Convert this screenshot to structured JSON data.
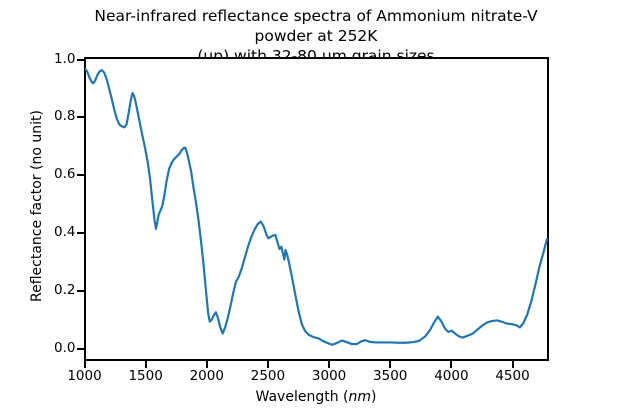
{
  "chart_data": {
    "type": "line",
    "title_line1": "Near-infrared reflectance spectra of Ammonium nitrate-V powder at 252K",
    "title_line2": "(up) with 32-80 μm grain sizes",
    "title": "Near-infrared reflectance spectra of Ammonium nitrate-V powder at 252K (up) with 32-80 μm grain sizes",
    "xlabel": "Wavelength (nm)",
    "xlabel_prefix": "Wavelength (",
    "xlabel_unit_italic": "nm",
    "xlabel_suffix": ")",
    "ylabel": "Reflectance factor (no unit)",
    "xlim": [
      1000,
      4786
    ],
    "ylim": [
      -0.0345,
      1.0069
    ],
    "x_ticks": [
      1000,
      1500,
      2000,
      2500,
      3000,
      3500,
      4000,
      4500
    ],
    "y_ticks": [
      0.0,
      0.2,
      0.4,
      0.6,
      0.8,
      1.0
    ],
    "grid": false,
    "legend_position": "none",
    "line_color": "#1f77b4",
    "axis_color": "#000000",
    "background": "#ffffff",
    "series": [
      {
        "name": "reflectance",
        "points": [
          [
            1000,
            0.97
          ],
          [
            1018,
            0.96
          ],
          [
            1038,
            0.938
          ],
          [
            1056,
            0.924
          ],
          [
            1068,
            0.92
          ],
          [
            1082,
            0.928
          ],
          [
            1100,
            0.947
          ],
          [
            1120,
            0.961
          ],
          [
            1137,
            0.965
          ],
          [
            1158,
            0.956
          ],
          [
            1180,
            0.93
          ],
          [
            1200,
            0.897
          ],
          [
            1222,
            0.86
          ],
          [
            1242,
            0.824
          ],
          [
            1262,
            0.795
          ],
          [
            1282,
            0.777
          ],
          [
            1302,
            0.771
          ],
          [
            1322,
            0.768
          ],
          [
            1340,
            0.778
          ],
          [
            1358,
            0.82
          ],
          [
            1374,
            0.86
          ],
          [
            1388,
            0.886
          ],
          [
            1402,
            0.876
          ],
          [
            1420,
            0.843
          ],
          [
            1445,
            0.79
          ],
          [
            1468,
            0.742
          ],
          [
            1492,
            0.695
          ],
          [
            1512,
            0.65
          ],
          [
            1532,
            0.59
          ],
          [
            1552,
            0.51
          ],
          [
            1568,
            0.45
          ],
          [
            1580,
            0.418
          ],
          [
            1590,
            0.438
          ],
          [
            1602,
            0.466
          ],
          [
            1618,
            0.482
          ],
          [
            1632,
            0.497
          ],
          [
            1650,
            0.535
          ],
          [
            1668,
            0.585
          ],
          [
            1688,
            0.625
          ],
          [
            1708,
            0.645
          ],
          [
            1728,
            0.658
          ],
          [
            1752,
            0.668
          ],
          [
            1772,
            0.676
          ],
          [
            1788,
            0.688
          ],
          [
            1806,
            0.696
          ],
          [
            1818,
            0.698
          ],
          [
            1832,
            0.683
          ],
          [
            1848,
            0.655
          ],
          [
            1868,
            0.615
          ],
          [
            1888,
            0.558
          ],
          [
            1908,
            0.508
          ],
          [
            1928,
            0.448
          ],
          [
            1948,
            0.378
          ],
          [
            1968,
            0.3
          ],
          [
            1988,
            0.21
          ],
          [
            2006,
            0.13
          ],
          [
            2020,
            0.098
          ],
          [
            2036,
            0.104
          ],
          [
            2056,
            0.122
          ],
          [
            2070,
            0.13
          ],
          [
            2086,
            0.112
          ],
          [
            2106,
            0.078
          ],
          [
            2126,
            0.057
          ],
          [
            2146,
            0.078
          ],
          [
            2166,
            0.108
          ],
          [
            2190,
            0.152
          ],
          [
            2212,
            0.196
          ],
          [
            2234,
            0.235
          ],
          [
            2258,
            0.253
          ],
          [
            2282,
            0.282
          ],
          [
            2308,
            0.32
          ],
          [
            2334,
            0.358
          ],
          [
            2360,
            0.39
          ],
          [
            2386,
            0.415
          ],
          [
            2412,
            0.434
          ],
          [
            2438,
            0.443
          ],
          [
            2462,
            0.425
          ],
          [
            2486,
            0.395
          ],
          [
            2500,
            0.385
          ],
          [
            2518,
            0.39
          ],
          [
            2540,
            0.395
          ],
          [
            2556,
            0.397
          ],
          [
            2572,
            0.375
          ],
          [
            2590,
            0.348
          ],
          [
            2606,
            0.356
          ],
          [
            2620,
            0.33
          ],
          [
            2630,
            0.312
          ],
          [
            2640,
            0.345
          ],
          [
            2652,
            0.33
          ],
          [
            2668,
            0.302
          ],
          [
            2694,
            0.248
          ],
          [
            2720,
            0.19
          ],
          [
            2746,
            0.135
          ],
          [
            2772,
            0.09
          ],
          [
            2800,
            0.065
          ],
          [
            2830,
            0.052
          ],
          [
            2870,
            0.044
          ],
          [
            2910,
            0.04
          ],
          [
            2950,
            0.03
          ],
          [
            2990,
            0.023
          ],
          [
            3020,
            0.018
          ],
          [
            3060,
            0.024
          ],
          [
            3100,
            0.033
          ],
          [
            3140,
            0.027
          ],
          [
            3180,
            0.021
          ],
          [
            3220,
            0.02
          ],
          [
            3260,
            0.03
          ],
          [
            3290,
            0.034
          ],
          [
            3330,
            0.028
          ],
          [
            3380,
            0.026
          ],
          [
            3440,
            0.026
          ],
          [
            3500,
            0.026
          ],
          [
            3560,
            0.025
          ],
          [
            3620,
            0.025
          ],
          [
            3680,
            0.027
          ],
          [
            3730,
            0.031
          ],
          [
            3780,
            0.046
          ],
          [
            3820,
            0.068
          ],
          [
            3855,
            0.095
          ],
          [
            3885,
            0.115
          ],
          [
            3915,
            0.098
          ],
          [
            3945,
            0.073
          ],
          [
            3972,
            0.062
          ],
          [
            3998,
            0.067
          ],
          [
            4028,
            0.056
          ],
          [
            4058,
            0.047
          ],
          [
            4088,
            0.043
          ],
          [
            4128,
            0.049
          ],
          [
            4168,
            0.056
          ],
          [
            4208,
            0.07
          ],
          [
            4248,
            0.084
          ],
          [
            4288,
            0.095
          ],
          [
            4328,
            0.1
          ],
          [
            4372,
            0.102
          ],
          [
            4412,
            0.097
          ],
          [
            4452,
            0.091
          ],
          [
            4492,
            0.089
          ],
          [
            4528,
            0.085
          ],
          [
            4556,
            0.078
          ],
          [
            4584,
            0.092
          ],
          [
            4616,
            0.122
          ],
          [
            4652,
            0.172
          ],
          [
            4688,
            0.235
          ],
          [
            4718,
            0.29
          ],
          [
            4748,
            0.335
          ],
          [
            4778,
            0.383
          ]
        ]
      }
    ]
  }
}
